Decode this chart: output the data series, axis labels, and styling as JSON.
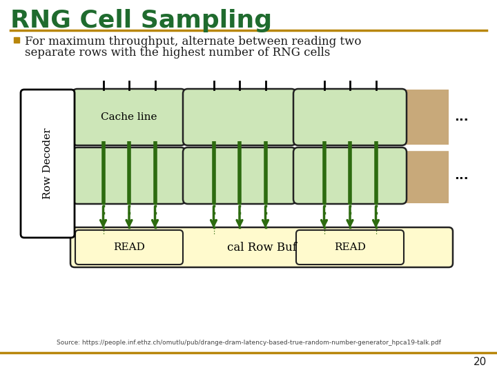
{
  "title": "RNG Cell Sampling",
  "title_color": "#1f6b2e",
  "title_fontsize": 26,
  "bullet_text_line1": "For maximum throughput, alternate between reading two",
  "bullet_text_line2": "separate rows with the highest number of RNG cells",
  "bullet_color": "#b8860b",
  "text_color": "#1a1a1a",
  "separator_color": "#b8860b",
  "bg_color": "#ffffff",
  "footer_text": "Source: https://people.inf.ethz.ch/omutlu/pub/drange-dram-latency-based-true-random-number-generator_hpca19-talk.pdf",
  "page_number": "20",
  "row_bg": "#c8a97a",
  "cell_fill": "#cde6b8",
  "cell_border": "#222222",
  "cache_line_label": "Cache line",
  "read_buf_label": "cal Row Buf",
  "read_label": "READ",
  "arrow_color": "#2d6b10",
  "row_decoder_text": "Row Decoder",
  "dots_str": "..."
}
